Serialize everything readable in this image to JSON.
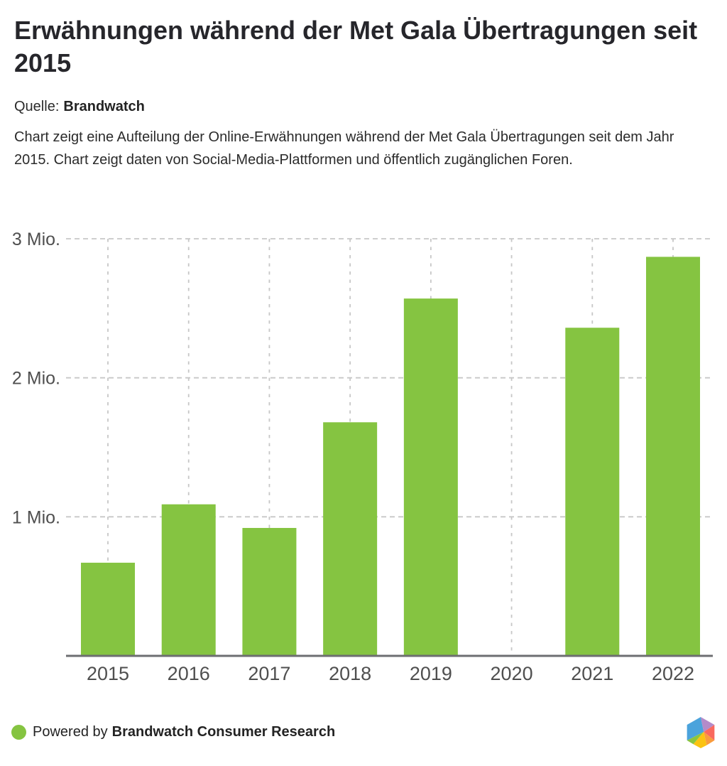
{
  "header": {
    "title": "Erwähnungen während der Met Gala Übertragungen seit 2015",
    "source_label": "Quelle:",
    "source_name": "Brandwatch",
    "description": "Chart zeigt eine Aufteilung der Online-Erwähnungen während der Met Gala Übertragungen seit dem Jahr 2015. Chart zeigt daten von Social-Media-Plattformen und öffentlich zugänglichen Foren."
  },
  "chart_data": {
    "type": "bar",
    "title": "Erwähnungen während der Met Gala Übertragungen seit 2015",
    "categories": [
      "2015",
      "2016",
      "2017",
      "2018",
      "2019",
      "2020",
      "2021",
      "2022"
    ],
    "values": [
      0.67,
      1.09,
      0.92,
      1.68,
      2.57,
      0,
      2.36,
      2.87
    ],
    "unit": "Mio. Erwähnungen",
    "xlabel": "",
    "ylabel": "",
    "ylim": [
      0,
      3
    ],
    "yticks": [
      {
        "value": 1,
        "label": "1 Mio."
      },
      {
        "value": 2,
        "label": "2 Mio."
      },
      {
        "value": 3,
        "label": "3 Mio."
      }
    ],
    "grid": "dashed, horizontal and vertical",
    "legend": "none",
    "bar_color": "#85c441",
    "axis_color": "#6d6e71",
    "grid_color": "#c7c7c7",
    "tick_label_color": "#4f4f4f"
  },
  "footer": {
    "powered_by": "Powered by",
    "brand": "Brandwatch Consumer Research",
    "dot_color": "#85c441",
    "logo_colors": {
      "blue": "#4ba3dc",
      "purple": "#b48bc9",
      "red": "#f9695e",
      "orange": "#f99c3d",
      "yellow": "#fbc311",
      "green": "#8bc540"
    }
  }
}
